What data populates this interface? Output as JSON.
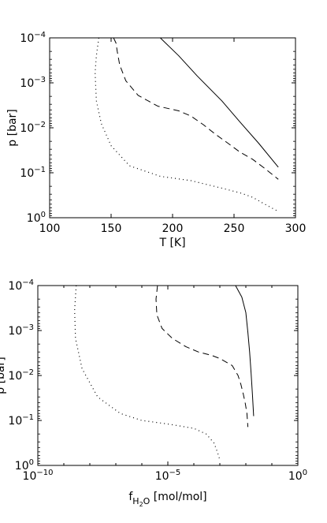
{
  "chart_data": [
    {
      "type": "line",
      "xlabel": "T [K]",
      "ylabel": "p [bar]",
      "xscale": "linear",
      "yscale": "log",
      "yaxis_inverted": true,
      "xlim": [
        100,
        300
      ],
      "ylim": [
        0.0001,
        1
      ],
      "xticks": [
        {
          "v": 100,
          "label": "100"
        },
        {
          "v": 150,
          "label": "150"
        },
        {
          "v": 200,
          "label": "200"
        },
        {
          "v": 250,
          "label": "250"
        },
        {
          "v": 300,
          "label": "300"
        }
      ],
      "yticks": [
        {
          "v": 0.0001,
          "base": "10",
          "exp": "−4"
        },
        {
          "v": 0.001,
          "base": "10",
          "exp": "−3"
        },
        {
          "v": 0.01,
          "base": "10",
          "exp": "−2"
        },
        {
          "v": 0.1,
          "base": "10",
          "exp": "−1"
        },
        {
          "v": 1,
          "base": "10",
          "exp": "0"
        }
      ],
      "series": [
        {
          "style": "solid",
          "x": [
            190,
            205,
            220,
            240,
            255,
            270,
            286
          ],
          "y": [
            0.0001,
            0.00025,
            0.0007,
            0.0025,
            0.0075,
            0.022,
            0.075
          ]
        },
        {
          "style": "dashed",
          "x": [
            152,
            154,
            155,
            157,
            162,
            172,
            188,
            205,
            215,
            225,
            235,
            245,
            255,
            265,
            275,
            286
          ],
          "y": [
            0.0001,
            0.00013,
            0.0002,
            0.0004,
            0.0009,
            0.0019,
            0.0033,
            0.0042,
            0.0055,
            0.0085,
            0.014,
            0.022,
            0.035,
            0.05,
            0.08,
            0.14
          ]
        },
        {
          "style": "dotted",
          "x": [
            140,
            138,
            137,
            138,
            142,
            150,
            165,
            190,
            215,
            240,
            255,
            265,
            275,
            285
          ],
          "y": [
            0.0001,
            0.00025,
            0.0006,
            0.0025,
            0.008,
            0.025,
            0.07,
            0.12,
            0.15,
            0.22,
            0.28,
            0.35,
            0.5,
            0.7
          ]
        }
      ]
    },
    {
      "type": "line",
      "xlabel": "f_H2O [mol/mol]",
      "xlabel_parts": {
        "main": "f",
        "sub1": "H",
        "sub2": "2",
        "sub3": "O",
        "unit": "[mol/mol]"
      },
      "ylabel": "p [bar]",
      "xscale": "log",
      "yscale": "log",
      "yaxis_inverted": true,
      "xlim": [
        1e-10,
        1
      ],
      "ylim": [
        0.0001,
        1
      ],
      "xticks": [
        {
          "v": 1e-10,
          "base": "10",
          "exp": "−10"
        },
        {
          "v": 1e-05,
          "base": "10",
          "exp": "−5"
        },
        {
          "v": 1,
          "base": "10",
          "exp": "0"
        }
      ],
      "yticks": [
        {
          "v": 0.0001,
          "base": "10",
          "exp": "−4"
        },
        {
          "v": 0.001,
          "base": "10",
          "exp": "−3"
        },
        {
          "v": 0.01,
          "base": "10",
          "exp": "−2"
        },
        {
          "v": 0.1,
          "base": "10",
          "exp": "−1"
        },
        {
          "v": 1,
          "base": "10",
          "exp": "0"
        }
      ],
      "series": [
        {
          "style": "solid",
          "x": [
            0.004,
            0.007,
            0.01,
            0.012,
            0.014,
            0.016,
            0.018,
            0.02
          ],
          "y": [
            0.0001,
            0.00018,
            0.0004,
            0.0011,
            0.003,
            0.009,
            0.027,
            0.08
          ]
        },
        {
          "style": "dashed",
          "x": [
            4e-06,
            3.5e-06,
            3.8e-06,
            6e-06,
            1.5e-05,
            5e-05,
            0.00015,
            0.0005,
            0.001,
            0.003,
            0.005,
            0.0065,
            0.008,
            0.0095,
            0.011,
            0.012
          ],
          "y": [
            0.0001,
            0.0002,
            0.00045,
            0.0009,
            0.0015,
            0.0023,
            0.003,
            0.0036,
            0.0042,
            0.006,
            0.01,
            0.016,
            0.026,
            0.042,
            0.07,
            0.14
          ]
        },
        {
          "style": "dotted",
          "x": [
            3e-09,
            2.6e-09,
            2.8e-09,
            5e-09,
            2e-08,
            1.5e-07,
            1e-06,
            1e-05,
            0.0001,
            0.0003,
            0.0006,
            0.0008,
            0.001
          ],
          "y": [
            0.0001,
            0.00035,
            0.0015,
            0.007,
            0.03,
            0.07,
            0.1,
            0.12,
            0.15,
            0.2,
            0.32,
            0.5,
            0.75
          ]
        }
      ]
    }
  ]
}
